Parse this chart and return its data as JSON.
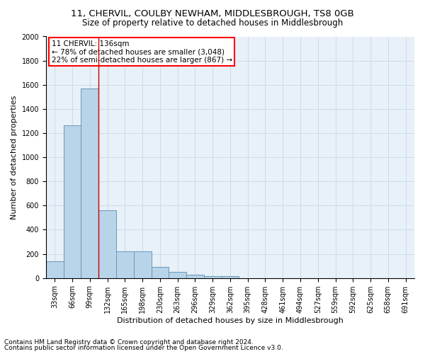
{
  "title1": "11, CHERVIL, COULBY NEWHAM, MIDDLESBROUGH, TS8 0GB",
  "title2": "Size of property relative to detached houses in Middlesbrough",
  "xlabel": "Distribution of detached houses by size in Middlesbrough",
  "ylabel": "Number of detached properties",
  "categories": [
    "33sqm",
    "66sqm",
    "99sqm",
    "132sqm",
    "165sqm",
    "198sqm",
    "230sqm",
    "263sqm",
    "296sqm",
    "329sqm",
    "362sqm",
    "395sqm",
    "428sqm",
    "461sqm",
    "494sqm",
    "527sqm",
    "559sqm",
    "592sqm",
    "625sqm",
    "658sqm",
    "691sqm"
  ],
  "values": [
    140,
    1265,
    1570,
    560,
    220,
    220,
    93,
    50,
    28,
    15,
    15,
    0,
    0,
    0,
    0,
    0,
    0,
    0,
    0,
    0,
    0
  ],
  "bar_color": "#b8d4e8",
  "bar_edge_color": "#6699bb",
  "annotation_line1": "11 CHERVIL: 136sqm",
  "annotation_line2": "← 78% of detached houses are smaller (3,048)",
  "annotation_line3": "22% of semi-detached houses are larger (867) →",
  "vline_x": 2.5,
  "vline_color": "#cc0000",
  "ylim": [
    0,
    2000
  ],
  "yticks": [
    0,
    200,
    400,
    600,
    800,
    1000,
    1200,
    1400,
    1600,
    1800,
    2000
  ],
  "footer1": "Contains HM Land Registry data © Crown copyright and database right 2024.",
  "footer2": "Contains public sector information licensed under the Open Government Licence v3.0.",
  "background_color": "#ffffff",
  "plot_bg_color": "#e8f0f8",
  "grid_color": "#c8d8e8",
  "title_fontsize": 9.5,
  "subtitle_fontsize": 8.5,
  "axis_label_fontsize": 8,
  "tick_fontsize": 7,
  "annotation_fontsize": 7.5,
  "footer_fontsize": 6.5
}
